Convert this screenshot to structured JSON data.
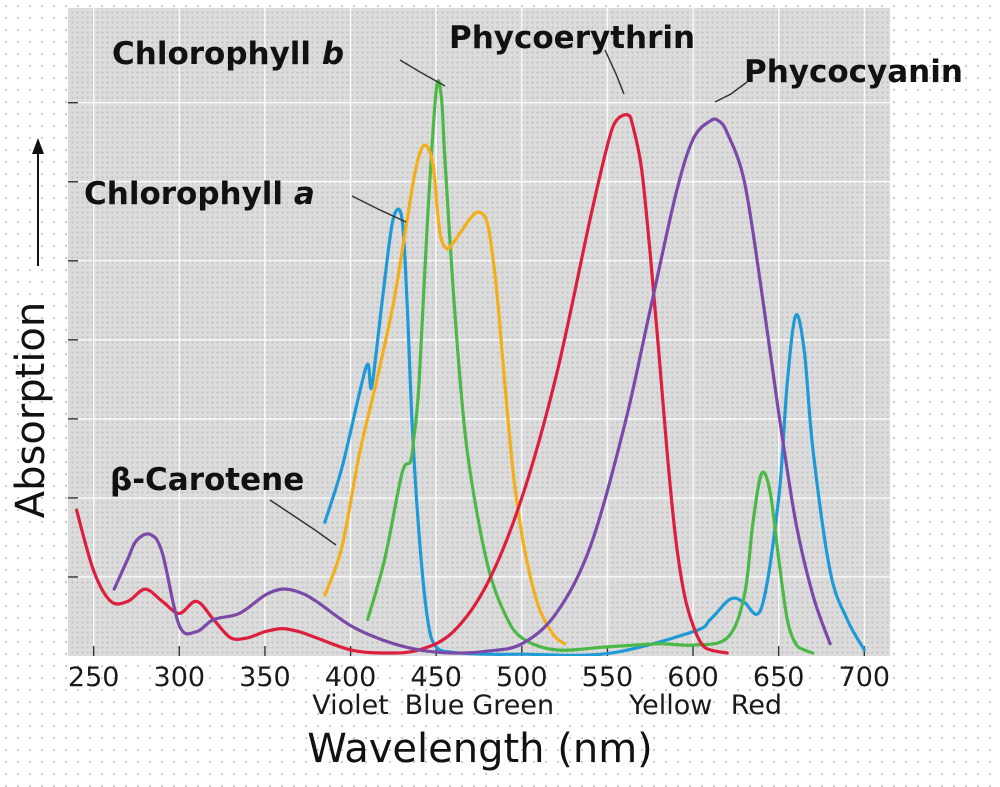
{
  "chart_data": {
    "type": "line",
    "xlabel": "Wavelength (nm)",
    "ylabel": "Absorption",
    "xlim": [
      235,
      715
    ],
    "ylim": [
      0,
      1
    ],
    "xticks": [
      250,
      300,
      350,
      400,
      450,
      500,
      550,
      600,
      650,
      700
    ],
    "yticks": [
      0,
      0.13,
      0.26,
      0.39,
      0.52,
      0.65,
      0.78,
      0.91
    ],
    "y_tick_labels": false,
    "grid": true,
    "band_labels": [
      {
        "text": "Violet",
        "x": 400
      },
      {
        "text": "Blue",
        "x": 449
      },
      {
        "text": "Green",
        "x": 495
      },
      {
        "text": "Yellow",
        "x": 587
      },
      {
        "text": "Red",
        "x": 637
      }
    ],
    "series": [
      {
        "name": "Chlorophyll a",
        "color": "#1f9ad6",
        "x": [
          385,
          395,
          405,
          410,
          412,
          415,
          420,
          425,
          430,
          433,
          436,
          440,
          445,
          450,
          460,
          480,
          500,
          550,
          600,
          610,
          620,
          625,
          630,
          640,
          650,
          655,
          660,
          665,
          670,
          680,
          690,
          700
        ],
        "y": [
          0.22,
          0.31,
          0.43,
          0.48,
          0.44,
          0.5,
          0.62,
          0.72,
          0.72,
          0.58,
          0.38,
          0.2,
          0.06,
          0.015,
          0.006,
          0.003,
          0.003,
          0.004,
          0.04,
          0.06,
          0.09,
          0.095,
          0.088,
          0.08,
          0.26,
          0.45,
          0.56,
          0.5,
          0.34,
          0.14,
          0.06,
          0.01
        ]
      },
      {
        "name": "Chlorophyll b",
        "color": "#4cb848",
        "x": [
          410,
          420,
          430,
          435,
          437,
          440,
          445,
          450,
          453,
          455,
          460,
          465,
          470,
          480,
          490,
          500,
          520,
          550,
          580,
          600,
          620,
          630,
          635,
          640,
          645,
          650,
          655,
          660,
          665,
          670
        ],
        "y": [
          0.06,
          0.16,
          0.3,
          0.32,
          0.36,
          0.45,
          0.72,
          0.93,
          0.92,
          0.82,
          0.6,
          0.42,
          0.3,
          0.15,
          0.07,
          0.03,
          0.01,
          0.015,
          0.02,
          0.018,
          0.03,
          0.1,
          0.22,
          0.3,
          0.27,
          0.16,
          0.06,
          0.02,
          0.01,
          0.005
        ]
      },
      {
        "name": "β-Carotene",
        "color": "#f4ae1a",
        "x": [
          385,
          395,
          405,
          415,
          425,
          432,
          438,
          443,
          448,
          452,
          456,
          460,
          465,
          470,
          475,
          480,
          485,
          490,
          495,
          500,
          505,
          510,
          515,
          520,
          525
        ],
        "y": [
          0.1,
          0.18,
          0.33,
          0.45,
          0.58,
          0.7,
          0.8,
          0.84,
          0.81,
          0.7,
          0.67,
          0.68,
          0.7,
          0.72,
          0.73,
          0.71,
          0.61,
          0.45,
          0.3,
          0.2,
          0.13,
          0.08,
          0.05,
          0.03,
          0.02
        ]
      },
      {
        "name": "Phycoerythrin",
        "color": "#dc1f3e",
        "x": [
          240,
          250,
          260,
          270,
          280,
          290,
          300,
          310,
          320,
          330,
          340,
          350,
          360,
          370,
          380,
          400,
          420,
          440,
          460,
          480,
          500,
          520,
          540,
          550,
          555,
          562,
          565,
          570,
          575,
          580,
          585,
          590,
          595,
          600,
          605,
          610,
          620
        ],
        "y": [
          0.24,
          0.14,
          0.09,
          0.09,
          0.11,
          0.09,
          0.07,
          0.09,
          0.06,
          0.03,
          0.03,
          0.04,
          0.045,
          0.04,
          0.03,
          0.01,
          0.005,
          0.01,
          0.04,
          0.12,
          0.26,
          0.46,
          0.72,
          0.84,
          0.88,
          0.89,
          0.87,
          0.8,
          0.66,
          0.5,
          0.33,
          0.19,
          0.1,
          0.05,
          0.02,
          0.01,
          0.005
        ]
      },
      {
        "name": "Phycocyanin",
        "color": "#7b4aa8",
        "x": [
          262,
          270,
          275,
          283,
          290,
          300,
          310,
          320,
          335,
          350,
          360,
          370,
          380,
          400,
          420,
          440,
          460,
          480,
          500,
          520,
          540,
          560,
          575,
          590,
          600,
          610,
          615,
          620,
          630,
          640,
          650,
          660,
          670,
          680
        ],
        "y": [
          0.11,
          0.16,
          0.19,
          0.2,
          0.17,
          0.05,
          0.04,
          0.06,
          0.07,
          0.1,
          0.11,
          0.105,
          0.09,
          0.05,
          0.025,
          0.01,
          0.005,
          0.008,
          0.02,
          0.07,
          0.18,
          0.38,
          0.57,
          0.76,
          0.85,
          0.88,
          0.88,
          0.86,
          0.78,
          0.6,
          0.4,
          0.22,
          0.1,
          0.02
        ]
      }
    ],
    "labels": {
      "chlorophyll_b": "Chlorophyll",
      "chlorophyll_b_letter": "b",
      "chlorophyll_a": "Chlorophyll",
      "chlorophyll_a_letter": "a",
      "phycoerythrin": "Phycoerythrin",
      "phycocyanin": "Phycocyanin",
      "carotene": "β-Carotene"
    }
  }
}
